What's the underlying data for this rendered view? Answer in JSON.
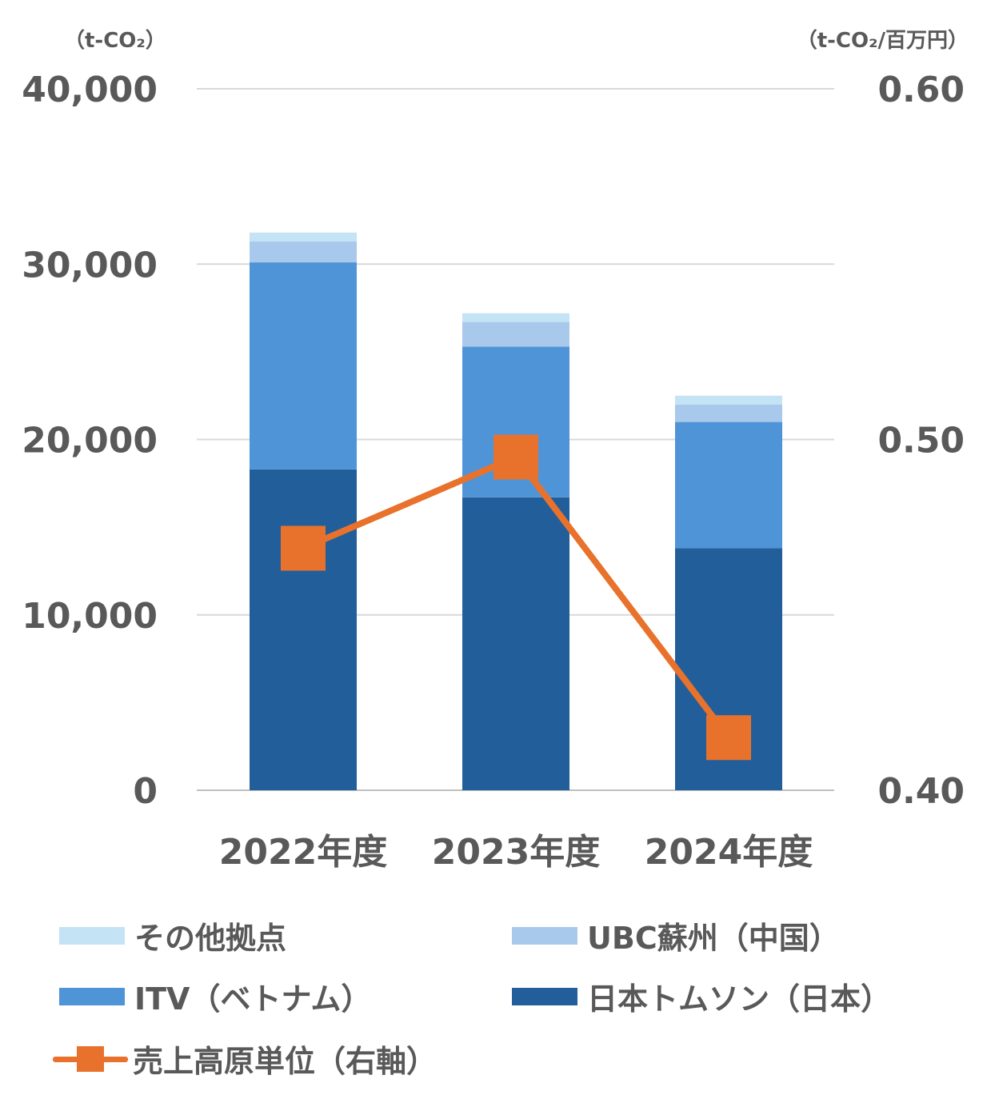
{
  "chart_data": {
    "type": "bar",
    "stacked": true,
    "categories": [
      "2022年度",
      "2023年度",
      "2024年度"
    ],
    "y_left": {
      "unit": "（t-CO₂）",
      "ticks": [
        "0",
        "10,000",
        "20,000",
        "30,000",
        "40,000"
      ],
      "ylim": [
        0,
        40000
      ]
    },
    "y_right": {
      "unit": "（t-CO₂/百万円）",
      "ticks": [
        "0.40",
        "0.50",
        "0.60"
      ],
      "ylim": [
        0.4,
        0.6
      ]
    },
    "series": [
      {
        "name": "日本トムソン（日本）",
        "color": "#225f9a",
        "values": [
          18300,
          16700,
          13800
        ]
      },
      {
        "name": "ITV（ベトナム）",
        "color": "#4f94d7",
        "values": [
          11800,
          8600,
          7200
        ]
      },
      {
        "name": "UBC蘇州（中国）",
        "color": "#a9c9ec",
        "values": [
          1200,
          1400,
          1000
        ]
      },
      {
        "name": "その他拠点",
        "color": "#c4e3f5",
        "values": [
          500,
          500,
          500
        ]
      }
    ],
    "line_series": {
      "name": "売上高原単位（右軸）",
      "color": "#e8722c",
      "axis": "right",
      "values": [
        0.469,
        0.495,
        0.415
      ]
    },
    "grid": true,
    "legend_position": "bottom"
  }
}
